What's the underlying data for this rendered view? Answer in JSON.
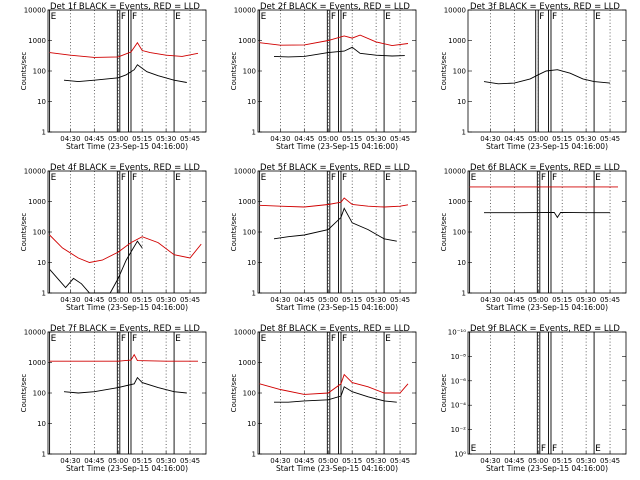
{
  "chart_data": [
    {
      "type": "line",
      "title": "Det 1f BLACK = Events, RED = LLD",
      "xlabel": "Start Time (23-Sep-15 04:16:00)",
      "ylabel": "Counts/sec",
      "yscale": "log",
      "ylim": [
        1,
        10000
      ],
      "x_ticks": [
        "04:30",
        "04:45",
        "05:00",
        "05:15",
        "05:30",
        "05:45"
      ],
      "y_ticks": [
        "1",
        "10",
        "100",
        "1000",
        "10000"
      ],
      "markers": [
        {
          "label": "E",
          "x": "04:17"
        },
        {
          "label": "F",
          "x": "05:01"
        },
        {
          "label": "F",
          "x": "05:08"
        },
        {
          "label": "E",
          "x": "05:35"
        }
      ],
      "series": [
        {
          "name": "LLD",
          "color": "#d00000",
          "x": [
            "04:17",
            "04:30",
            "04:45",
            "05:00",
            "05:08",
            "05:12",
            "05:15",
            "05:20",
            "05:30",
            "05:40",
            "05:50"
          ],
          "values": [
            400,
            330,
            280,
            290,
            420,
            850,
            470,
            400,
            330,
            300,
            380
          ]
        },
        {
          "name": "Events",
          "color": "#000000",
          "x": [
            "04:26",
            "04:35",
            "04:45",
            "05:00",
            "05:05",
            "05:10",
            "05:12",
            "05:18",
            "05:25",
            "05:35",
            "05:43"
          ],
          "values": [
            50,
            45,
            50,
            60,
            75,
            110,
            160,
            95,
            70,
            50,
            42
          ]
        }
      ]
    },
    {
      "type": "line",
      "title": "Det 2f BLACK = Events, RED = LLD",
      "xlabel": "Start Time (23-Sep-15 04:16:00)",
      "ylabel": "Counts/sec",
      "yscale": "log",
      "ylim": [
        1,
        10000
      ],
      "x_ticks": [
        "04:30",
        "04:45",
        "05:00",
        "05:15",
        "05:30",
        "05:45"
      ],
      "y_ticks": [
        "1",
        "10",
        "100",
        "1000",
        "10000"
      ],
      "markers": [
        {
          "label": "E",
          "x": "04:17"
        },
        {
          "label": "F",
          "x": "05:01"
        },
        {
          "label": "F",
          "x": "05:08"
        },
        {
          "label": "E",
          "x": "05:35"
        }
      ],
      "series": [
        {
          "name": "LLD",
          "color": "#d00000",
          "x": [
            "04:17",
            "04:30",
            "04:45",
            "05:00",
            "05:10",
            "05:15",
            "05:20",
            "05:30",
            "05:40",
            "05:50"
          ],
          "values": [
            850,
            700,
            720,
            1000,
            1400,
            1200,
            1500,
            900,
            680,
            800
          ]
        },
        {
          "name": "Events",
          "color": "#000000",
          "x": [
            "04:26",
            "04:35",
            "04:45",
            "05:00",
            "05:10",
            "05:15",
            "05:20",
            "05:30",
            "05:40",
            "05:48"
          ],
          "values": [
            300,
            290,
            300,
            400,
            450,
            600,
            380,
            330,
            310,
            320
          ]
        }
      ]
    },
    {
      "type": "line",
      "title": "Det 3f BLACK = Events, RED = LLD",
      "xlabel": "Start Time (23-Sep-15 04:16:00)",
      "ylabel": "Counts/sec",
      "yscale": "log",
      "ylim": [
        1,
        10000
      ],
      "x_ticks": [
        "04:30",
        "04:45",
        "05:00",
        "05:15",
        "05:30",
        "05:45"
      ],
      "y_ticks": [
        "1",
        "10",
        "100",
        "1000",
        "10000"
      ],
      "markers": [
        {
          "label": "F",
          "x": "05:00"
        },
        {
          "label": "F",
          "x": "05:08"
        },
        {
          "label": "E",
          "x": "05:35"
        }
      ],
      "series": [
        {
          "name": "Events",
          "color": "#000000",
          "x": [
            "04:26",
            "04:35",
            "04:45",
            "04:55",
            "05:00",
            "05:05",
            "05:12",
            "05:20",
            "05:28",
            "05:35",
            "05:45"
          ],
          "values": [
            45,
            38,
            40,
            55,
            75,
            100,
            110,
            85,
            55,
            45,
            40
          ]
        }
      ]
    },
    {
      "type": "line",
      "title": "Det 4f BLACK = Events, RED = LLD",
      "xlabel": "Start Time (23-Sep-15 04:16:00)",
      "ylabel": "Counts/sec",
      "yscale": "log",
      "ylim": [
        1,
        10000
      ],
      "x_ticks": [
        "04:30",
        "04:45",
        "05:00",
        "05:15",
        "05:30",
        "05:45"
      ],
      "y_ticks": [
        "1",
        "10",
        "100",
        "1000",
        "10000"
      ],
      "markers": [
        {
          "label": "E",
          "x": "04:17"
        },
        {
          "label": "F",
          "x": "05:01"
        },
        {
          "label": "F",
          "x": "05:08"
        },
        {
          "label": "E",
          "x": "05:35"
        }
      ],
      "series": [
        {
          "name": "LLD",
          "color": "#d00000",
          "x": [
            "04:17",
            "04:25",
            "04:35",
            "04:42",
            "04:50",
            "05:00",
            "05:08",
            "05:15",
            "05:25",
            "05:35",
            "05:45",
            "05:52"
          ],
          "values": [
            80,
            30,
            14,
            10,
            12,
            22,
            45,
            70,
            45,
            18,
            14,
            40
          ]
        },
        {
          "name": "Events",
          "color": "#000000",
          "x": [
            "04:17",
            "04:22",
            "04:27",
            "04:32",
            "04:37",
            "04:42",
            "04:50",
            "04:55",
            "05:00",
            "05:05",
            "05:12",
            "05:15"
          ],
          "values": [
            6,
            3,
            1.5,
            3,
            2,
            1,
            1,
            1,
            3,
            12,
            50,
            30
          ]
        }
      ]
    },
    {
      "type": "line",
      "title": "Det 5f BLACK = Events, RED = LLD",
      "xlabel": "Start Time (23-Sep-15 04:16:00)",
      "ylabel": "Counts/sec",
      "yscale": "log",
      "ylim": [
        1,
        10000
      ],
      "x_ticks": [
        "04:30",
        "04:45",
        "05:00",
        "05:15",
        "05:30",
        "05:45"
      ],
      "y_ticks": [
        "1",
        "10",
        "100",
        "1000",
        "10000"
      ],
      "markers": [
        {
          "label": "E",
          "x": "04:17"
        },
        {
          "label": "F",
          "x": "05:01"
        },
        {
          "label": "F",
          "x": "05:08"
        },
        {
          "label": "E",
          "x": "05:35"
        }
      ],
      "series": [
        {
          "name": "LLD",
          "color": "#d00000",
          "x": [
            "04:17",
            "04:30",
            "04:45",
            "05:00",
            "05:08",
            "05:10",
            "05:15",
            "05:25",
            "05:35",
            "05:45",
            "05:50"
          ],
          "values": [
            750,
            700,
            660,
            800,
            950,
            1300,
            800,
            700,
            660,
            700,
            780
          ]
        },
        {
          "name": "Events",
          "color": "#000000",
          "x": [
            "04:26",
            "04:35",
            "04:45",
            "05:00",
            "05:08",
            "05:10",
            "05:15",
            "05:25",
            "05:35",
            "05:43"
          ],
          "values": [
            60,
            70,
            80,
            120,
            300,
            600,
            200,
            120,
            60,
            50
          ]
        }
      ]
    },
    {
      "type": "line",
      "title": "Det 6f BLACK = Events, RED = LLD",
      "xlabel": "Start Time (23-Sep-15 04:16:00)",
      "ylabel": "Counts/sec",
      "yscale": "log",
      "ylim": [
        1,
        10000
      ],
      "x_ticks": [
        "04:30",
        "04:45",
        "05:00",
        "05:15",
        "05:30",
        "05:45"
      ],
      "y_ticks": [
        "1",
        "10",
        "100",
        "1000",
        "10000"
      ],
      "markers": [
        {
          "label": "E",
          "x": "04:17"
        },
        {
          "label": "F",
          "x": "05:01"
        },
        {
          "label": "F",
          "x": "05:08"
        },
        {
          "label": "E",
          "x": "05:35"
        }
      ],
      "series": [
        {
          "name": "LLD",
          "color": "#d00000",
          "x": [
            "04:17",
            "05:00",
            "05:50"
          ],
          "values": [
            3000,
            3000,
            3000
          ]
        },
        {
          "name": "Events",
          "color": "#000000",
          "x": [
            "04:26",
            "04:50",
            "05:10",
            "05:12",
            "05:14",
            "05:30",
            "05:45"
          ],
          "values": [
            430,
            430,
            440,
            300,
            440,
            430,
            430
          ]
        }
      ]
    },
    {
      "type": "line",
      "title": "Det 7f BLACK = Events, RED = LLD",
      "xlabel": "Start Time (23-Sep-15 04:16:00)",
      "ylabel": "Counts/sec",
      "yscale": "log",
      "ylim": [
        1,
        10000
      ],
      "x_ticks": [
        "04:30",
        "04:45",
        "05:00",
        "05:15",
        "05:30",
        "05:45"
      ],
      "y_ticks": [
        "1",
        "10",
        "100",
        "1000",
        "10000"
      ],
      "markers": [
        {
          "label": "E",
          "x": "04:17"
        },
        {
          "label": "F",
          "x": "05:01"
        },
        {
          "label": "F",
          "x": "05:08"
        },
        {
          "label": "E",
          "x": "05:35"
        }
      ],
      "series": [
        {
          "name": "LLD",
          "color": "#d00000",
          "x": [
            "04:17",
            "04:45",
            "05:00",
            "05:08",
            "05:10",
            "05:12",
            "05:30",
            "05:50"
          ],
          "values": [
            1100,
            1100,
            1100,
            1200,
            1800,
            1150,
            1100,
            1100
          ]
        },
        {
          "name": "Events",
          "color": "#000000",
          "x": [
            "04:26",
            "04:35",
            "04:45",
            "05:00",
            "05:10",
            "05:12",
            "05:15",
            "05:25",
            "05:35",
            "05:43"
          ],
          "values": [
            110,
            100,
            110,
            150,
            200,
            320,
            220,
            150,
            110,
            100
          ]
        }
      ]
    },
    {
      "type": "line",
      "title": "Det 8f BLACK = Events, RED = LLD",
      "xlabel": "Start Time (23-Sep-15 04:16:00)",
      "ylabel": "Counts/sec",
      "yscale": "log",
      "ylim": [
        1,
        10000
      ],
      "x_ticks": [
        "04:30",
        "04:45",
        "05:00",
        "05:15",
        "05:30",
        "05:45"
      ],
      "y_ticks": [
        "1",
        "10",
        "100",
        "1000",
        "10000"
      ],
      "markers": [
        {
          "label": "E",
          "x": "04:17"
        },
        {
          "label": "F",
          "x": "05:01"
        },
        {
          "label": "F",
          "x": "05:08"
        },
        {
          "label": "E",
          "x": "05:35"
        }
      ],
      "series": [
        {
          "name": "LLD",
          "color": "#d00000",
          "x": [
            "04:17",
            "04:30",
            "04:45",
            "05:00",
            "05:08",
            "05:10",
            "05:15",
            "05:25",
            "05:35",
            "05:45",
            "05:50"
          ],
          "values": [
            200,
            130,
            90,
            100,
            200,
            400,
            220,
            160,
            100,
            100,
            200
          ]
        },
        {
          "name": "Events",
          "color": "#000000",
          "x": [
            "04:26",
            "04:35",
            "04:45",
            "05:00",
            "05:08",
            "05:10",
            "05:15",
            "05:25",
            "05:35",
            "05:43"
          ],
          "values": [
            50,
            50,
            55,
            60,
            80,
            160,
            110,
            75,
            55,
            50
          ]
        }
      ]
    },
    {
      "type": "line",
      "title": "Det 9f BLACK = Events, RED = LLD",
      "xlabel": "Start Time (23-Sep-15 04:16:00)",
      "ylabel": "Counts/sec",
      "yscale": "log",
      "ylim": [
        1,
        1e-10
      ],
      "x_ticks": [
        "04:30",
        "04:45",
        "05:00",
        "05:15",
        "05:30",
        "05:45"
      ],
      "y_ticks": [
        "10⁰",
        "10⁻²",
        "10⁻⁴",
        "10⁻⁶",
        "10⁻⁸",
        "10⁻¹⁰"
      ],
      "markers": [
        {
          "label": "E",
          "x": "04:17"
        },
        {
          "label": "F",
          "x": "05:01"
        },
        {
          "label": "F",
          "x": "05:08"
        },
        {
          "label": "E",
          "x": "05:35"
        }
      ],
      "series": []
    }
  ]
}
